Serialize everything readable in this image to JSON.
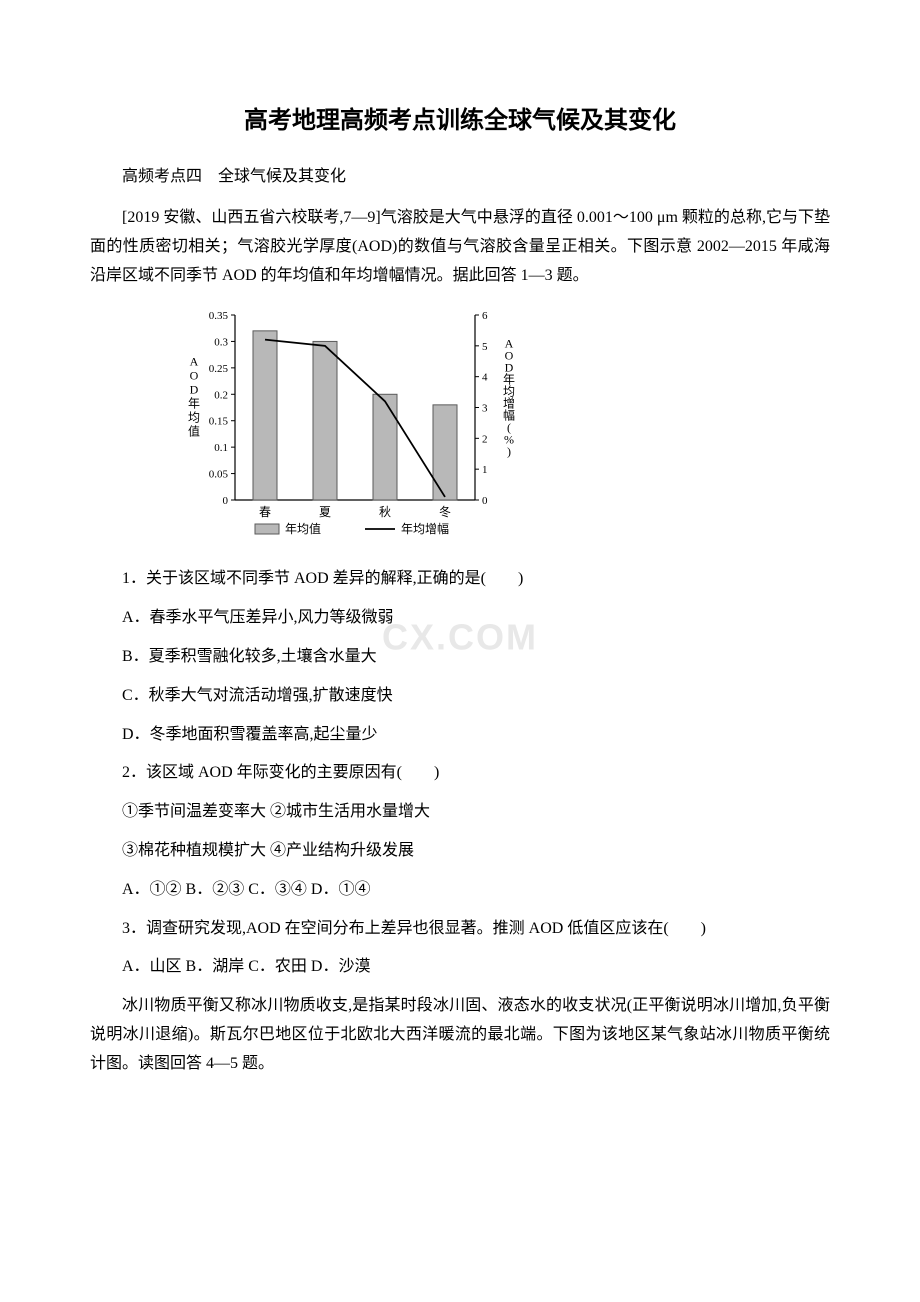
{
  "title": "高考地理高频考点训练全球气候及其变化",
  "subtitle": "高频考点四　全球气候及其变化",
  "intro_para": "[2019 安徽、山西五省六校联考,7—9]气溶胶是大气中悬浮的直径 0.001～100 μm 颗粒的总称,它与下垫面的性质密切相关；气溶胶光学厚度(AOD)的数值与气溶胶含量呈正相关。下图示意 2002—2015 年咸海沿岸区域不同季节 AOD 的年均值和年均增幅情况。据此回答 1—3 题。",
  "chart": {
    "type": "bar_line_combo",
    "categories": [
      "春",
      "夏",
      "秋",
      "冬"
    ],
    "bar_values": [
      0.32,
      0.3,
      0.2,
      0.18
    ],
    "line_values": [
      5.2,
      5.0,
      3.2,
      0.1
    ],
    "left_ylabel": "AOD年均值",
    "right_ylabel": "AOD年均增幅(%)",
    "left_ylim": [
      0,
      0.35
    ],
    "left_ytick_step": 0.05,
    "left_ticks": [
      "0",
      "0.05",
      "0.1",
      "0.15",
      "0.2",
      "0.25",
      "0.3",
      "0.35"
    ],
    "right_ylim": [
      0,
      6
    ],
    "right_ytick_step": 1,
    "right_ticks": [
      "0",
      "1",
      "2",
      "3",
      "4",
      "5",
      "6"
    ],
    "bar_color": "#b8b8b8",
    "bar_border": "#5a5a5a",
    "line_color": "#000000",
    "axis_color": "#000000",
    "bar_width": 0.4,
    "legend_bar": "年均值",
    "legend_line": "年均增幅",
    "label_fontsize": 11
  },
  "q1": "1．关于该区域不同季节 AOD 差异的解释,正确的是(　　)",
  "q1_a": "A．春季水平气压差异小,风力等级微弱",
  "q1_b": "B．夏季积雪融化较多,土壤含水量大",
  "q1_c": "C．秋季大气对流活动增强,扩散速度快",
  "q1_d": "D．冬季地面积雪覆盖率高,起尘量少",
  "q2": "2．该区域 AOD 年际变化的主要原因有(　　)",
  "q2_opts1": "①季节间温差变率大 ②城市生活用水量增大",
  "q2_opts2": "③棉花种植规模扩大 ④产业结构升级发展",
  "q2_choices": "A．①② B．②③ C．③④ D．①④",
  "q3": "3．调查研究发现,AOD 在空间分布上差异也很显著。推测 AOD 低值区应该在(　　)",
  "q3_choices": "A．山区 B．湖岸 C．农田 D．沙漠",
  "para2": "冰川物质平衡又称冰川物质收支,是指某时段冰川固、液态水的收支状况(正平衡说明冰川增加,负平衡说明冰川退缩)。斯瓦尔巴地区位于北欧北大西洋暖流的最北端。下图为该地区某气象站冰川物质平衡统计图。读图回答 4—5 题。",
  "watermark": "CX.COM"
}
